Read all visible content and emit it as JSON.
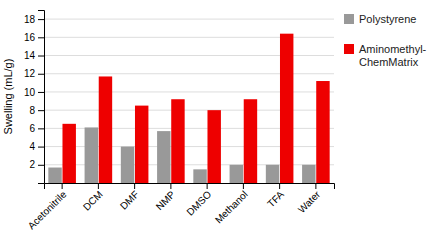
{
  "chart_data": {
    "type": "bar",
    "categories": [
      "Acetonitrile",
      "DCM",
      "DMF",
      "NMP",
      "DMSO",
      "Methanol",
      "TFA",
      "Water"
    ],
    "series": [
      {
        "name": "Polystyrene",
        "color": "#999999",
        "values": [
          1.7,
          6.1,
          4.0,
          5.7,
          1.5,
          2.0,
          2.0,
          2.0
        ]
      },
      {
        "name": "Aminomethyl-\nChemMatrix",
        "color": "#ee0000",
        "values": [
          6.5,
          11.7,
          8.5,
          9.2,
          8.0,
          9.2,
          16.4,
          11.2
        ]
      }
    ],
    "ylabel": "Swelling (mL/g)",
    "ylim": [
      0,
      19
    ],
    "yticks": [
      2,
      4,
      6,
      8,
      10,
      12,
      14,
      16,
      18
    ],
    "grid": true,
    "legend": "right"
  }
}
